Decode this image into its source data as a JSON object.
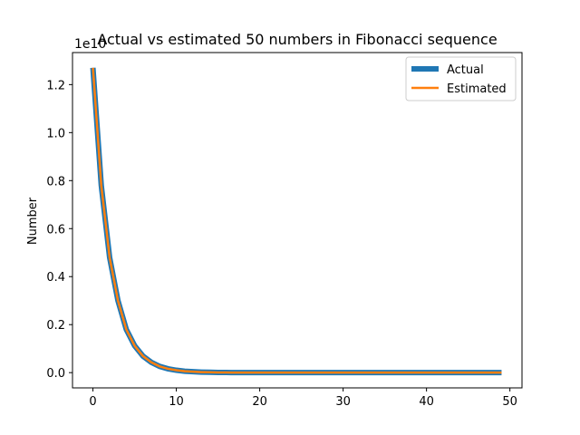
{
  "chart_data": {
    "type": "line",
    "title": "Actual vs estimated 50 numbers in Fibonacci sequence",
    "xlabel": "",
    "ylabel": "Number",
    "y_multiplier_label": "1e10",
    "xlim": [
      -2.45,
      51.45
    ],
    "ylim": [
      -0.0635,
      1.3335
    ],
    "x_ticks": [
      0,
      10,
      20,
      30,
      40,
      50
    ],
    "y_ticks": [
      0.0,
      0.2,
      0.4,
      0.6,
      0.8,
      1.0,
      1.2
    ],
    "y_tick_labels": [
      "0.0",
      "0.2",
      "0.4",
      "0.6",
      "0.8",
      "1.0",
      "1.2"
    ],
    "x_tick_labels": [
      "0",
      "10",
      "20",
      "30",
      "40",
      "50"
    ],
    "legend_position": "top-right",
    "grid": false,
    "colors": {
      "actual": "#1f77b4",
      "estimated": "#ff7f0e"
    },
    "x": [
      0,
      1,
      2,
      3,
      4,
      5,
      6,
      7,
      8,
      9,
      10,
      11,
      12,
      13,
      14,
      15,
      16,
      17,
      18,
      19,
      20,
      21,
      22,
      23,
      24,
      25,
      26,
      27,
      28,
      29,
      30,
      31,
      32,
      33,
      34,
      35,
      36,
      37,
      38,
      39,
      40,
      41,
      42,
      43,
      44,
      45,
      46,
      47,
      48,
      49
    ],
    "series": [
      {
        "name": "Actual",
        "values": [
          1.27,
          0.78,
          0.48,
          0.3,
          0.18,
          0.112,
          0.069,
          0.043,
          0.026,
          0.016,
          0.01,
          0.006,
          0.0038,
          0.0023,
          0.0014,
          0.0009,
          0.0005,
          0.0003,
          0.0002,
          0.0001,
          0,
          0,
          0,
          0,
          0,
          0,
          0,
          0,
          0,
          0,
          0,
          0,
          0,
          0,
          0,
          0,
          0,
          0,
          0,
          0,
          0,
          0,
          0,
          0,
          0,
          0,
          0,
          0,
          0,
          0
        ]
      },
      {
        "name": "Estimated",
        "values": [
          1.27,
          0.78,
          0.48,
          0.3,
          0.18,
          0.112,
          0.069,
          0.043,
          0.026,
          0.016,
          0.01,
          0.006,
          0.0038,
          0.0023,
          0.0014,
          0.0009,
          0.0005,
          0.0003,
          0.0002,
          0.0001,
          0,
          0,
          0,
          0,
          0,
          0,
          0,
          0,
          0,
          0,
          0,
          0,
          0,
          0,
          0,
          0,
          0,
          0,
          0,
          0,
          0,
          0,
          0,
          0,
          0,
          0,
          0,
          0,
          0,
          0
        ]
      }
    ]
  }
}
